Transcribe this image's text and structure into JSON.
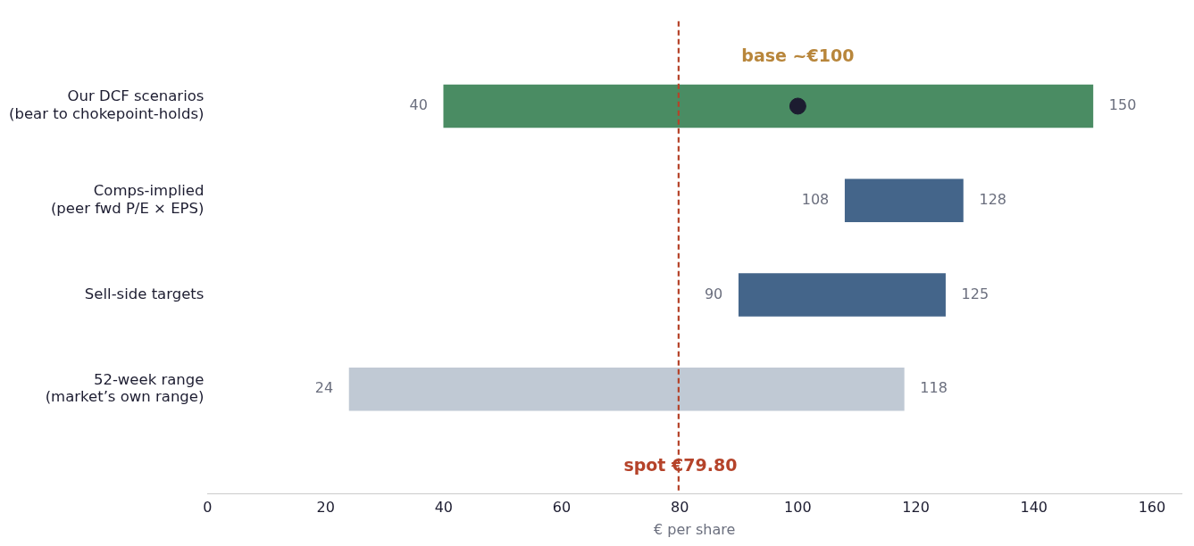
{
  "chart_data": {
    "type": "bar",
    "orientation": "horizontal",
    "xlabel": "€ per share",
    "categories": [
      "Our DCF scenarios\n(bear to chokepoint-holds)",
      "Comps-implied\n(peer fwd P/E × EPS)",
      "Sell-side targets",
      "52-week range\n(market’s own range)"
    ],
    "series": [
      {
        "values": [
          110,
          20,
          35,
          94
        ],
        "base": [
          40,
          108,
          90,
          24
        ],
        "colors": [
          "#4a8c63",
          "#44658a",
          "#44658a",
          "#c0c9d4"
        ],
        "value_labels": [
          "150",
          "128",
          "125",
          "118"
        ]
      },
      {
        "type": "scatter",
        "values": [
          100,
          null,
          null,
          null
        ],
        "color": "#1c1c30"
      }
    ],
    "xlim": [
      0,
      165
    ],
    "xticks": [
      0,
      20,
      40,
      60,
      80,
      100,
      120,
      140,
      160
    ],
    "ref_lines": [
      {
        "axis": "x",
        "value": 79.8,
        "label": "spot €79.80",
        "color": "#b5432a",
        "line_style": "dashed"
      }
    ],
    "annotations": [
      "base ~€100",
      "40",
      "108",
      "90",
      "24"
    ],
    "grid": false,
    "legend": false,
    "marker": "circle"
  }
}
